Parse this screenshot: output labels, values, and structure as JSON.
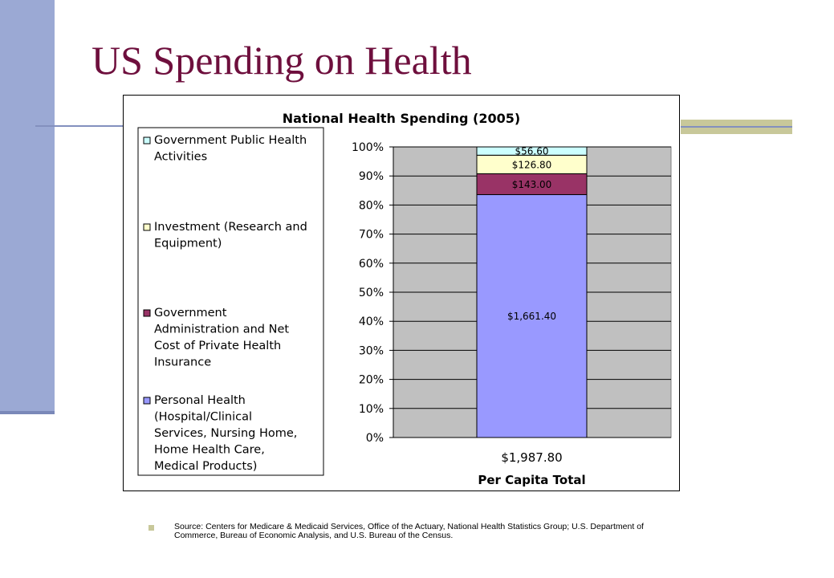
{
  "slide": {
    "title": "US Spending on Health",
    "source": "Source: Centers for Medicare & Medicaid Services, Office of the Actuary, National Health Statistics Group; U.S. Department of Commerce, Bureau of Economic Analysis, and U.S. Bureau of the Census."
  },
  "colors": {
    "title": "#6e0f3d",
    "accent_bar": "#9ba9d4",
    "accent_rule": "#c8c89a",
    "plot_background": "#c0c0c0"
  },
  "chart_data": {
    "type": "bar",
    "stacked": "percent",
    "title": "National Health Spending (2005)",
    "xlabel": "Per Capita Total",
    "ylabel": "",
    "categories": [
      "$1,987.80"
    ],
    "y_ticks": [
      "0%",
      "10%",
      "20%",
      "30%",
      "40%",
      "50%",
      "60%",
      "70%",
      "80%",
      "90%",
      "100%"
    ],
    "ylim": [
      0,
      100
    ],
    "grid": true,
    "legend_position": "left",
    "series": [
      {
        "name": "Personal Health (Hospital/Clinical Services, Nursing Home, Home Health Care, Medical Products)",
        "values": [
          1661.4
        ],
        "label": "$1,661.40",
        "color": "#9999ff"
      },
      {
        "name": "Government Administration and Net Cost of Private Health Insurance",
        "values": [
          143.0
        ],
        "label": "$143.00",
        "color": "#993366"
      },
      {
        "name": "Investment (Research and Equipment)",
        "values": [
          126.8
        ],
        "label": "$126.80",
        "color": "#ffffcc"
      },
      {
        "name": "Government Public Health Activities",
        "values": [
          56.6
        ],
        "label": "$56.60",
        "color": "#ccffff"
      }
    ]
  }
}
